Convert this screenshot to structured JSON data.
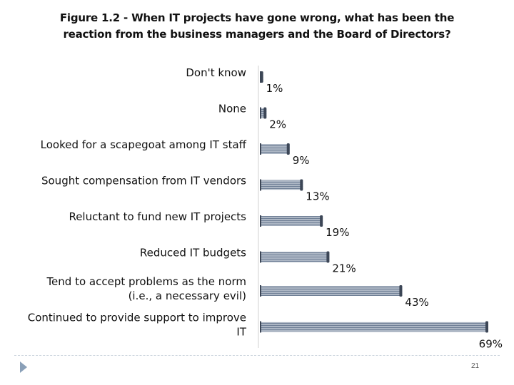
{
  "title": {
    "line1": "Figure 1.2 - When IT projects have gone wrong, what has been the",
    "line2": "reaction from the business managers and the Board of Directors?"
  },
  "chart_data": {
    "type": "bar",
    "orientation": "horizontal",
    "categories": [
      [
        "Don't know"
      ],
      [
        "None"
      ],
      [
        "Looked for a scapegoat among IT staff"
      ],
      [
        "Sought compensation from IT vendors"
      ],
      [
        "Reluctant to fund new IT projects"
      ],
      [
        "Reduced IT budgets"
      ],
      [
        "Tend to accept problems as the norm",
        "(i.e., a necessary evil)"
      ],
      [
        "Continued to provide support to improve",
        "IT"
      ]
    ],
    "values": [
      1,
      2,
      9,
      13,
      19,
      21,
      43,
      69
    ],
    "data_labels": [
      "1%",
      "2%",
      "9%",
      "13%",
      "19%",
      "21%",
      "43%",
      "69%"
    ],
    "xlim": [
      0,
      69
    ],
    "grid": false,
    "colors": {
      "bar": "#6f7f96",
      "stripe": "#e8ecf2",
      "edge": "#3c4656"
    }
  },
  "footer": {
    "page_number": "21"
  }
}
